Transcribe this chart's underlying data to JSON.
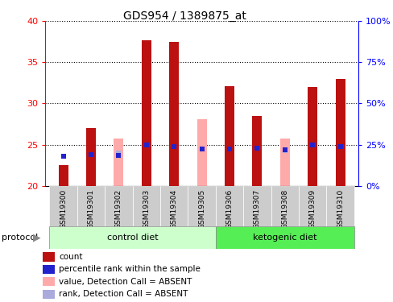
{
  "title": "GDS954 / 1389875_at",
  "samples": [
    "GSM19300",
    "GSM19301",
    "GSM19302",
    "GSM19303",
    "GSM19304",
    "GSM19305",
    "GSM19306",
    "GSM19307",
    "GSM19308",
    "GSM19309",
    "GSM19310"
  ],
  "red_bar_top": [
    22.5,
    27.0,
    null,
    37.7,
    37.5,
    null,
    32.1,
    28.5,
    null,
    32.0,
    33.0
  ],
  "pink_bar_top": [
    null,
    null,
    25.7,
    null,
    null,
    28.1,
    null,
    null,
    25.7,
    null,
    null
  ],
  "blue_dot_y": [
    23.6,
    23.8,
    23.7,
    25.0,
    24.8,
    24.5,
    24.5,
    24.6,
    24.4,
    25.0,
    24.8
  ],
  "light_blue_dot_y": [
    null,
    null,
    24.0,
    null,
    null,
    24.5,
    null,
    null,
    24.3,
    null,
    null
  ],
  "ylim_left": [
    20,
    40
  ],
  "ylim_right": [
    0,
    100
  ],
  "yticks_left": [
    20,
    25,
    30,
    35,
    40
  ],
  "yticks_right": [
    0,
    25,
    50,
    75,
    100
  ],
  "bar_bottom": 20,
  "red_color": "#BB1111",
  "pink_color": "#FFAAAA",
  "blue_color": "#2222CC",
  "light_blue_color": "#AAAADD",
  "bg_xlabel": "#CCCCCC",
  "bg_group_control": "#CCFFCC",
  "bg_group_ketogenic": "#55EE55",
  "bar_width": 0.35,
  "ctrl_indices": [
    0,
    1,
    2,
    3,
    4,
    5
  ],
  "keto_indices": [
    6,
    7,
    8,
    9,
    10
  ],
  "legend_items": [
    {
      "label": "count",
      "color": "#BB1111"
    },
    {
      "label": "percentile rank within the sample",
      "color": "#2222CC"
    },
    {
      "label": "value, Detection Call = ABSENT",
      "color": "#FFAAAA"
    },
    {
      "label": "rank, Detection Call = ABSENT",
      "color": "#AAAADD"
    }
  ]
}
